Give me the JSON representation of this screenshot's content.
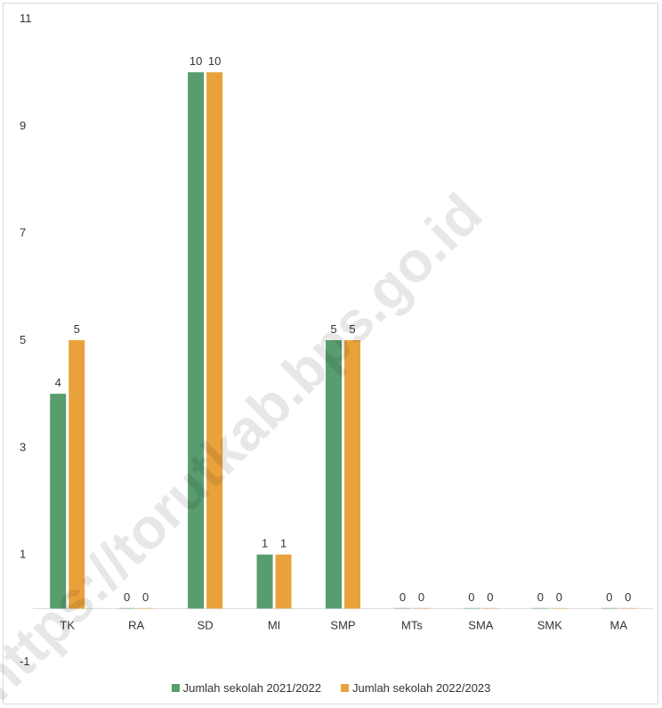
{
  "chart_data": {
    "type": "bar",
    "categories": [
      "TK",
      "RA",
      "SD",
      "MI",
      "SMP",
      "MTs",
      "SMA",
      "SMK",
      "MA"
    ],
    "series": [
      {
        "name": "Jumlah sekolah  2021/2022",
        "values": [
          4,
          0,
          10,
          1,
          5,
          0,
          0,
          0,
          0
        ],
        "color": "#579d6e"
      },
      {
        "name": "Jumlah sekolah  2022/2023",
        "values": [
          5,
          0,
          10,
          1,
          5,
          0,
          0,
          0,
          0
        ],
        "color": "#e9a23b"
      }
    ],
    "yticks": [
      -1,
      1,
      3,
      5,
      7,
      9,
      11
    ],
    "ylim": [
      -1,
      11
    ],
    "grid": false,
    "legend": "bottom",
    "data_labels": true
  },
  "watermark": "https://torutkab.bps.go.id"
}
